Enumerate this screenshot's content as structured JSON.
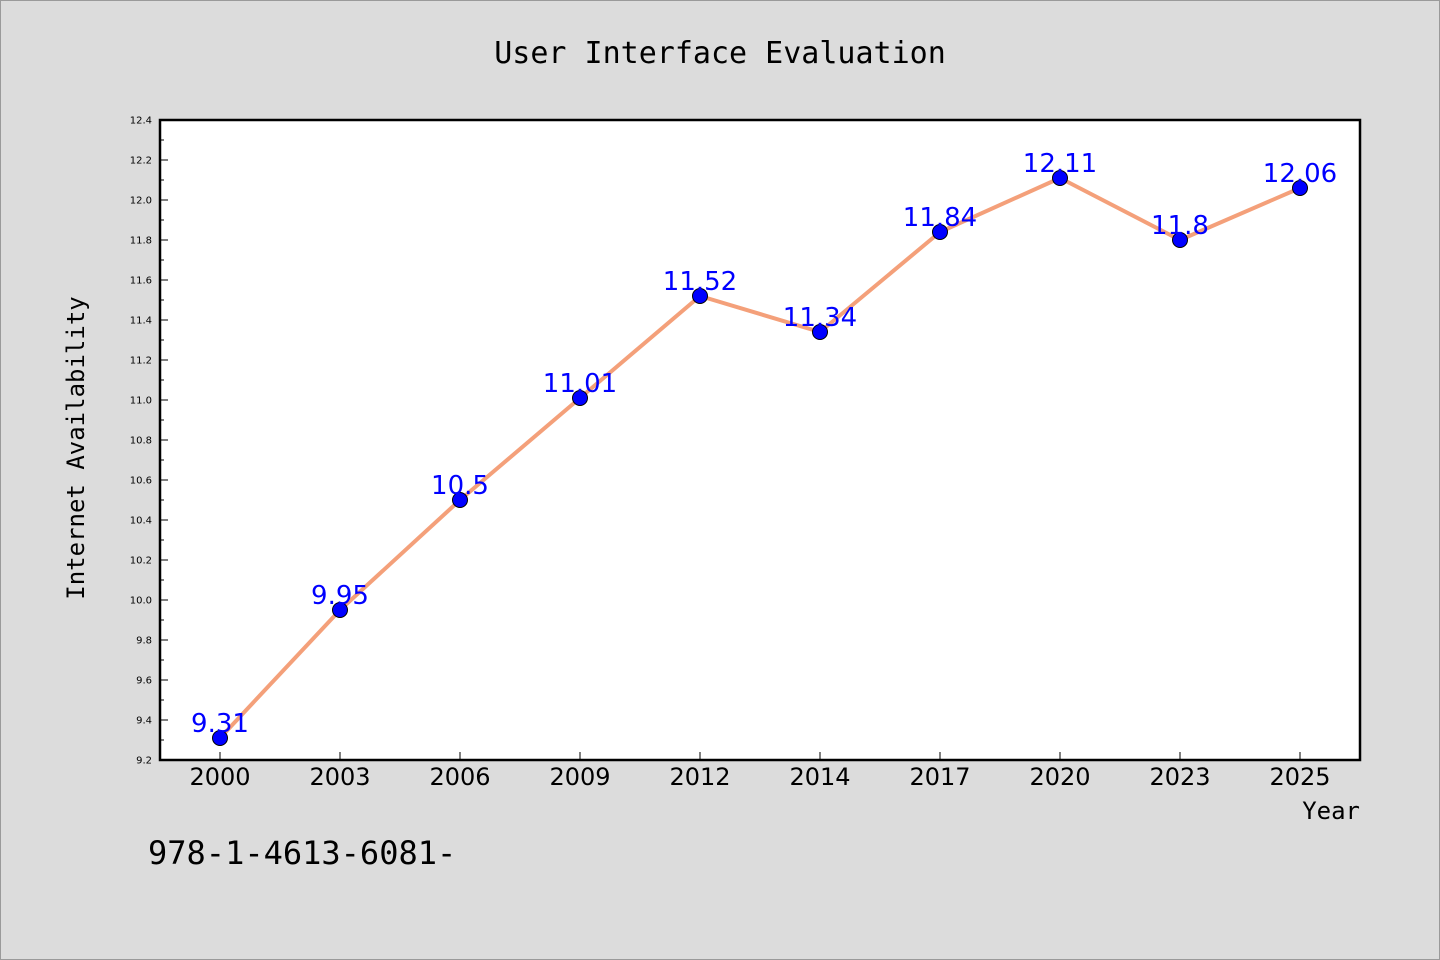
{
  "chart_data": {
    "type": "line",
    "title": "User Interface Evaluation",
    "xlabel": "Year",
    "ylabel": "Internet Availability",
    "categories": [
      "2000",
      "2003",
      "2006",
      "2009",
      "2012",
      "2014",
      "2017",
      "2020",
      "2023",
      "2025"
    ],
    "series": [
      {
        "values": [
          9.31,
          9.95,
          10.5,
          11.01,
          11.52,
          11.34,
          11.84,
          12.11,
          11.8,
          12.06
        ],
        "labels": [
          "9.31",
          "9.95",
          "10.5",
          "11.01",
          "11.52",
          "11.34",
          "11.84",
          "12.11",
          "11.8",
          "12.06"
        ],
        "line_color": "#f4a07a",
        "marker_color": "#0000ff"
      }
    ],
    "ylim": [
      9.2,
      12.4
    ],
    "yticks": [
      "9.2",
      "9.4",
      "9.6",
      "9.8",
      "10.0",
      "10.2",
      "10.4",
      "10.6",
      "10.8",
      "11.0",
      "11.2",
      "11.4",
      "11.6",
      "11.8",
      "12.0",
      "12.2",
      "12.4"
    ],
    "grid": false,
    "legend": "none"
  },
  "footer_text": "978-1-4613-6081-"
}
